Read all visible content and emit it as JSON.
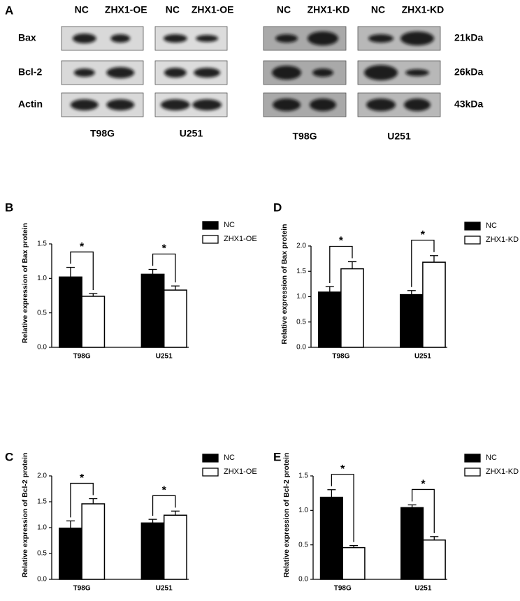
{
  "panel_a": {
    "panel": "A",
    "columns": [
      {
        "labels": [
          "NC",
          "ZHX1-OE"
        ],
        "cell_line": "T98G"
      },
      {
        "labels": [
          "NC",
          "ZHX1-OE"
        ],
        "cell_line": "U251"
      },
      {
        "labels": [
          "NC",
          "ZHX1-KD"
        ],
        "cell_line": "T98G"
      },
      {
        "labels": [
          "NC",
          "ZHX1-KD"
        ],
        "cell_line": "U251"
      }
    ],
    "rows": [
      {
        "protein": "Bax",
        "size": "21kDa"
      },
      {
        "protein": "Bcl-2",
        "size": "26kDa"
      },
      {
        "protein": "Actin",
        "size": "43kDa"
      }
    ]
  },
  "chart_data": [
    {
      "panel": "B",
      "type": "bar",
      "ylabel": "Relative expression of Bax protein",
      "categories": [
        "T98G",
        "U251"
      ],
      "series": [
        {
          "name": "NC",
          "color": "#000000",
          "values": [
            1.02,
            1.06
          ],
          "errors": [
            0.14,
            0.07
          ]
        },
        {
          "name": "ZHX1-OE",
          "color": "#ffffff",
          "values": [
            0.74,
            0.83
          ],
          "errors": [
            0.04,
            0.06
          ]
        }
      ],
      "ylim": [
        0,
        1.5
      ],
      "yticks": [
        {
          "value": 0,
          "label": "0.0"
        },
        0.5,
        {
          "value": 1,
          "label": "1.0"
        },
        1.5
      ],
      "annotations": [
        "*",
        "*"
      ]
    },
    {
      "panel": "C",
      "type": "bar",
      "ylabel": "Relative expression of Bcl-2 protein",
      "categories": [
        "T98G",
        "U251"
      ],
      "series": [
        {
          "name": "NC",
          "color": "#000000",
          "values": [
            0.99,
            1.09
          ],
          "errors": [
            0.14,
            0.07
          ]
        },
        {
          "name": "ZHX1-OE",
          "color": "#ffffff",
          "values": [
            1.46,
            1.24
          ],
          "errors": [
            0.1,
            0.08
          ]
        }
      ],
      "ylim": [
        0,
        2
      ],
      "yticks": [
        {
          "value": 0,
          "label": "0.0"
        },
        0.5,
        {
          "value": 1,
          "label": "1.0"
        },
        1.5,
        {
          "value": 2,
          "label": "2.0"
        }
      ],
      "annotations": [
        "*",
        "*"
      ]
    },
    {
      "panel": "D",
      "type": "bar",
      "ylabel": "Relative expression of Bax protein",
      "categories": [
        "T98G",
        "U251"
      ],
      "series": [
        {
          "name": "NC",
          "color": "#000000",
          "values": [
            1.09,
            1.04
          ],
          "errors": [
            0.11,
            0.08
          ]
        },
        {
          "name": "ZHX1-KD",
          "color": "#ffffff",
          "values": [
            1.55,
            1.68
          ],
          "errors": [
            0.14,
            0.13
          ]
        }
      ],
      "ylim": [
        0,
        2
      ],
      "yticks": [
        {
          "value": 0,
          "label": "0.0"
        },
        0.5,
        {
          "value": 1,
          "label": "1.0"
        },
        1.5,
        {
          "value": 2,
          "label": "2.0"
        }
      ],
      "annotations": [
        "*",
        "*"
      ]
    },
    {
      "panel": "E",
      "type": "bar",
      "ylabel": "Relative expression of Bcl-2 protein",
      "categories": [
        "T98G",
        "U251"
      ],
      "series": [
        {
          "name": "NC",
          "color": "#000000",
          "values": [
            1.19,
            1.04
          ],
          "errors": [
            0.11,
            0.04
          ]
        },
        {
          "name": "ZHX1-KD",
          "color": "#ffffff",
          "values": [
            0.46,
            0.57
          ],
          "errors": [
            0.03,
            0.05
          ]
        }
      ],
      "ylim": [
        0,
        1.5
      ],
      "yticks": [
        {
          "value": 0,
          "label": "0.0"
        },
        0.5,
        {
          "value": 1,
          "label": "1.0"
        },
        1.5
      ],
      "annotations": [
        "*",
        "*"
      ]
    }
  ]
}
